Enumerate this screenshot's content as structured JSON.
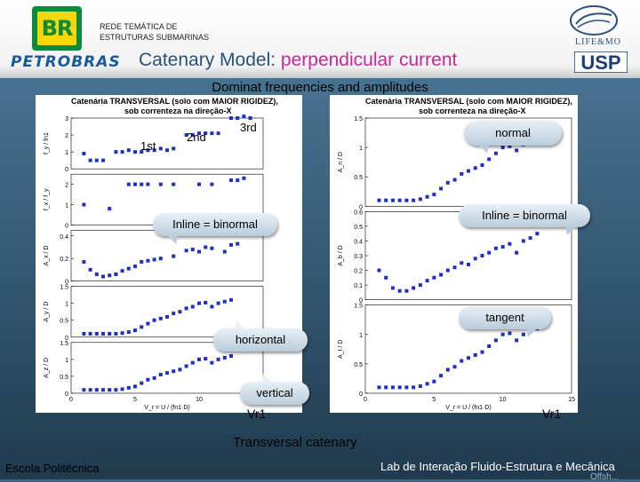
{
  "header": {
    "br_logo_text": "BR",
    "petrobras": "PETROBRAS",
    "rede_line1": "REDE TEMÁTICA DE",
    "rede_line2": "ESTRUTURAS SUBMARINAS",
    "title_prefix": "Catenary Model: ",
    "title_highlight": "perpendicular current",
    "lifemo": "LIFE&MO",
    "usp": "USP"
  },
  "subtitle": "Dominat frequencies and amplitudes",
  "colors": {
    "accent": "#c4289a",
    "title": "#27527a",
    "marker": "#1f2fbf"
  },
  "left_panel": {
    "title_line1": "Catenária TRANSVERSAL (solo com MAIOR RIGIDEZ),",
    "title_line2": "sob correnteza na direção-X",
    "plots": [
      {
        "ylabel": "f_y / fn1",
        "yticks": [
          "0",
          "1",
          "2",
          "3"
        ],
        "ylim": [
          0,
          3
        ],
        "points": [
          [
            1,
            0.9
          ],
          [
            1.5,
            0.5
          ],
          [
            2,
            0.5
          ],
          [
            2.5,
            0.5
          ],
          [
            3.5,
            1
          ],
          [
            4,
            1
          ],
          [
            4.5,
            1.1
          ],
          [
            5,
            1
          ],
          [
            5.5,
            1
          ],
          [
            6,
            1.1
          ],
          [
            6.5,
            1.1
          ],
          [
            7,
            1.2
          ],
          [
            7.5,
            1.1
          ],
          [
            8,
            1.2
          ],
          [
            9,
            2
          ],
          [
            9.5,
            2
          ],
          [
            10,
            2.1
          ],
          [
            10.5,
            2.1
          ],
          [
            11,
            2.1
          ],
          [
            11.5,
            2.1
          ],
          [
            12.5,
            3
          ],
          [
            13,
            3
          ],
          [
            13.5,
            3.1
          ],
          [
            14,
            3
          ]
        ]
      },
      {
        "ylabel": "f_x / f_y",
        "yticks": [
          "0",
          "1",
          "2"
        ],
        "ylim": [
          0,
          2.5
        ],
        "points": [
          [
            1,
            1
          ],
          [
            3,
            0.8
          ],
          [
            4.5,
            2
          ],
          [
            5,
            2
          ],
          [
            5.5,
            2
          ],
          [
            6,
            2
          ],
          [
            7,
            2
          ],
          [
            8,
            2
          ],
          [
            10,
            2
          ],
          [
            11,
            2
          ],
          [
            12.5,
            2.2
          ],
          [
            13,
            2.2
          ],
          [
            13.5,
            2.3
          ]
        ]
      },
      {
        "ylabel": "A_x / D",
        "yticks": [
          "0",
          "0.2",
          "0.4"
        ],
        "ylim": [
          0,
          0.45
        ],
        "points": [
          [
            1,
            0.17
          ],
          [
            1.5,
            0.1
          ],
          [
            2,
            0.06
          ],
          [
            2.5,
            0.04
          ],
          [
            3,
            0.05
          ],
          [
            3.5,
            0.06
          ],
          [
            4,
            0.09
          ],
          [
            4.5,
            0.11
          ],
          [
            5,
            0.13
          ],
          [
            5.5,
            0.17
          ],
          [
            6,
            0.18
          ],
          [
            6.5,
            0.19
          ],
          [
            7,
            0.2
          ],
          [
            8,
            0.22
          ],
          [
            9,
            0.27
          ],
          [
            9.5,
            0.28
          ],
          [
            10,
            0.26
          ],
          [
            10.5,
            0.3
          ],
          [
            11,
            0.29
          ],
          [
            12,
            0.26
          ],
          [
            12.5,
            0.32
          ],
          [
            13,
            0.33
          ]
        ]
      },
      {
        "ylabel": "A_y / D",
        "yticks": [
          "0",
          "0.5",
          "1",
          "1.5"
        ],
        "ylim": [
          0,
          1.5
        ],
        "points": [
          [
            1,
            0.1
          ],
          [
            1.5,
            0.1
          ],
          [
            2,
            0.1
          ],
          [
            2.5,
            0.1
          ],
          [
            3,
            0.1
          ],
          [
            3.5,
            0.1
          ],
          [
            4,
            0.12
          ],
          [
            4.5,
            0.15
          ],
          [
            5,
            0.2
          ],
          [
            5.5,
            0.3
          ],
          [
            6,
            0.4
          ],
          [
            6.5,
            0.5
          ],
          [
            7,
            0.55
          ],
          [
            7.5,
            0.6
          ],
          [
            8,
            0.7
          ],
          [
            8.5,
            0.75
          ],
          [
            9,
            0.85
          ],
          [
            9.5,
            0.9
          ],
          [
            10,
            1
          ],
          [
            10.5,
            1.02
          ],
          [
            11,
            0.9
          ],
          [
            11.5,
            1.0
          ],
          [
            12,
            1.05
          ],
          [
            12.5,
            1.1
          ]
        ]
      },
      {
        "ylabel": "A_z / D",
        "yticks": [
          "0",
          "0.5",
          "1",
          "1.5"
        ],
        "ylim": [
          0,
          1.5
        ],
        "points": [
          [
            1,
            0.1
          ],
          [
            1.5,
            0.1
          ],
          [
            2,
            0.1
          ],
          [
            2.5,
            0.1
          ],
          [
            3,
            0.1
          ],
          [
            3.5,
            0.1
          ],
          [
            4,
            0.12
          ],
          [
            4.5,
            0.16
          ],
          [
            5,
            0.2
          ],
          [
            5.5,
            0.3
          ],
          [
            6,
            0.4
          ],
          [
            6.5,
            0.45
          ],
          [
            7,
            0.55
          ],
          [
            7.5,
            0.6
          ],
          [
            8,
            0.65
          ],
          [
            8.5,
            0.7
          ],
          [
            9,
            0.8
          ],
          [
            9.5,
            0.9
          ],
          [
            10,
            1
          ],
          [
            10.5,
            1.02
          ],
          [
            11,
            0.9
          ],
          [
            11.5,
            1
          ],
          [
            12,
            1.05
          ],
          [
            12.5,
            1.1
          ]
        ]
      }
    ],
    "xticks": [
      "0",
      "5",
      "10",
      "15"
    ],
    "xlim": [
      0,
      15
    ],
    "xlabel": "V_r = U / (fn1·D)"
  },
  "right_panel": {
    "title_line1": "Catenária TRANSVERSAL (solo com MAIOR RIGIDEZ),",
    "title_line2": "sob correnteza na direção-X",
    "plots": [
      {
        "ylabel": "A_n / D",
        "yticks": [
          "0",
          "0.5",
          "1",
          "1.5"
        ],
        "ylim": [
          0,
          1.5
        ],
        "points": [
          [
            1,
            0.1
          ],
          [
            1.5,
            0.1
          ],
          [
            2,
            0.1
          ],
          [
            2.5,
            0.1
          ],
          [
            3,
            0.1
          ],
          [
            3.5,
            0.1
          ],
          [
            4,
            0.12
          ],
          [
            4.5,
            0.16
          ],
          [
            5,
            0.2
          ],
          [
            5.5,
            0.3
          ],
          [
            6,
            0.4
          ],
          [
            6.5,
            0.45
          ],
          [
            7,
            0.55
          ],
          [
            7.5,
            0.6
          ],
          [
            8,
            0.65
          ],
          [
            8.5,
            0.7
          ],
          [
            9,
            0.8
          ],
          [
            9.5,
            0.9
          ],
          [
            10,
            1
          ],
          [
            10.5,
            1.02
          ],
          [
            11,
            0.95
          ],
          [
            11.5,
            1.05
          ],
          [
            12,
            1.1
          ],
          [
            12.5,
            1.12
          ]
        ]
      },
      {
        "ylabel": "A_b / D",
        "yticks": [
          "0",
          "0.1",
          "0.2",
          "0.3",
          "0.4",
          "0.5",
          "0.6"
        ],
        "ylim": [
          0,
          0.6
        ],
        "points": [
          [
            1,
            0.2
          ],
          [
            1.5,
            0.15
          ],
          [
            2,
            0.08
          ],
          [
            2.5,
            0.06
          ],
          [
            3,
            0.06
          ],
          [
            3.5,
            0.08
          ],
          [
            4,
            0.1
          ],
          [
            4.5,
            0.13
          ],
          [
            5,
            0.15
          ],
          [
            5.5,
            0.17
          ],
          [
            6,
            0.2
          ],
          [
            6.5,
            0.22
          ],
          [
            7,
            0.25
          ],
          [
            7.5,
            0.24
          ],
          [
            8,
            0.28
          ],
          [
            8.5,
            0.3
          ],
          [
            9,
            0.32
          ],
          [
            9.5,
            0.35
          ],
          [
            10,
            0.36
          ],
          [
            10.5,
            0.38
          ],
          [
            11,
            0.32
          ],
          [
            11.5,
            0.4
          ],
          [
            12,
            0.42
          ],
          [
            12.5,
            0.45
          ]
        ]
      },
      {
        "ylabel": "A_t / D",
        "yticks": [
          "0",
          "0.5",
          "1",
          "1.5"
        ],
        "ylim": [
          0,
          1.5
        ],
        "points": [
          [
            1,
            0.1
          ],
          [
            1.5,
            0.1
          ],
          [
            2,
            0.1
          ],
          [
            2.5,
            0.1
          ],
          [
            3,
            0.1
          ],
          [
            3.5,
            0.1
          ],
          [
            4,
            0.12
          ],
          [
            4.5,
            0.16
          ],
          [
            5,
            0.2
          ],
          [
            5.5,
            0.3
          ],
          [
            6,
            0.4
          ],
          [
            6.5,
            0.45
          ],
          [
            7,
            0.55
          ],
          [
            7.5,
            0.6
          ],
          [
            8,
            0.65
          ],
          [
            8.5,
            0.7
          ],
          [
            9,
            0.8
          ],
          [
            9.5,
            0.9
          ],
          [
            10,
            1
          ],
          [
            10.5,
            1.02
          ],
          [
            11,
            0.9
          ],
          [
            11.5,
            1
          ],
          [
            12,
            1.05
          ],
          [
            12.5,
            1.1
          ]
        ]
      }
    ],
    "xticks": [
      "0",
      "5",
      "10",
      "15"
    ],
    "xlim": [
      0,
      15
    ],
    "xlabel": "V_r = U / (fn1·D)"
  },
  "annotations": {
    "first": "1st",
    "second": "2nd",
    "third": "3rd",
    "inline_left": "Inline = binormal",
    "inline_right": "Inline = binormal",
    "normal": "normal",
    "tangent": "tangent",
    "horizontal": "horizontal",
    "vertical": "vertical",
    "vr_left": "Vr1",
    "vr_right": "Vr1"
  },
  "footer": {
    "transversal": "Transversal catenary",
    "escola": "Escola Politécnica",
    "lab": "Lab de Interação Fluido-Estrutura e Mecânica",
    "lab2": "Offsh..."
  }
}
